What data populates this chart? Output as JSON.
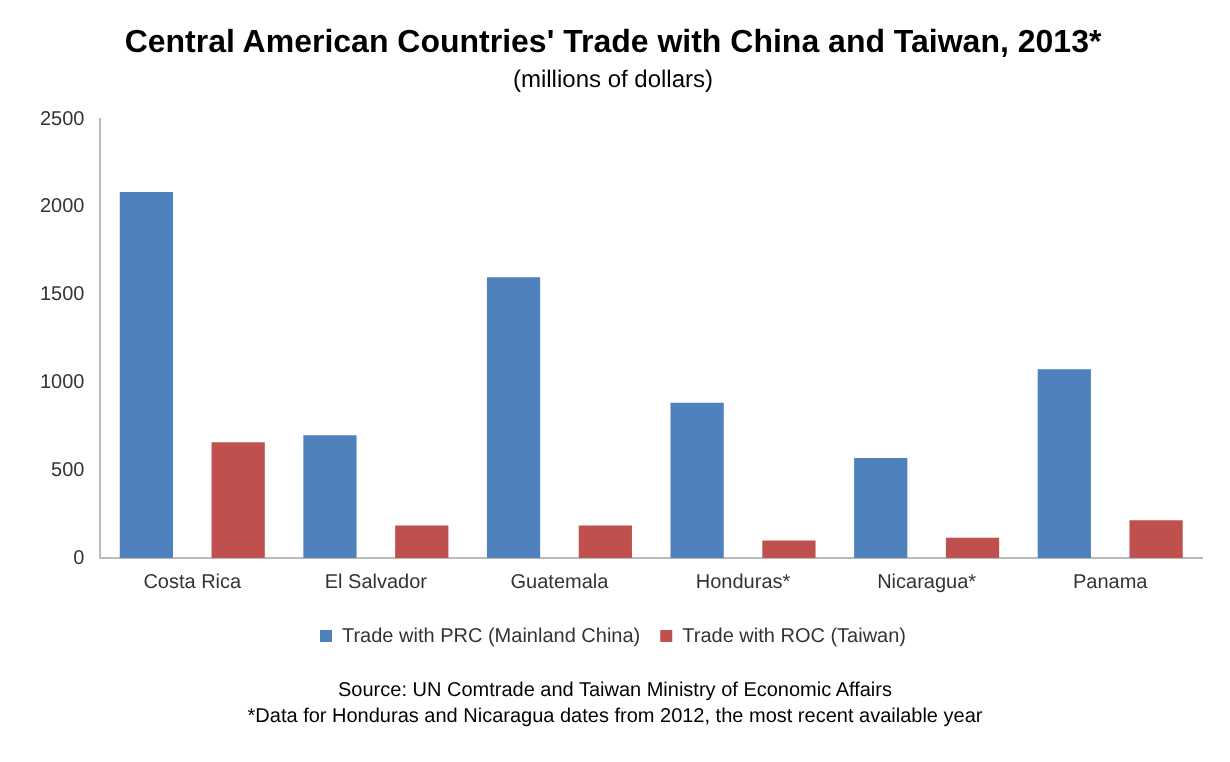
{
  "chart_data": {
    "type": "bar",
    "title": "Central American Countries' Trade with China and Taiwan, 2013*",
    "subtitle": "(millions of dollars)",
    "categories": [
      "Costa Rica",
      "El Salvador",
      "Guatemala",
      "Honduras*",
      "Nicaragua*",
      "Panama"
    ],
    "series": [
      {
        "name": "Trade with PRC (Mainland China)",
        "color": "#4f81bd",
        "values": [
          2085,
          700,
          1600,
          885,
          570,
          1075
        ]
      },
      {
        "name": "Trade with ROC (Taiwan)",
        "color": "#c0504d",
        "values": [
          660,
          185,
          185,
          100,
          115,
          215
        ]
      }
    ],
    "ylim": [
      0,
      2500
    ],
    "yticks": [
      0,
      500,
      1000,
      1500,
      2000,
      2500
    ],
    "grid": false,
    "legend": "bottom",
    "annotations": [
      "Source: UN Comtrade and Taiwan Ministry of Economic Affairs",
      "*Data for Honduras and Nicaragua dates from 2012, the most recent available year"
    ]
  }
}
